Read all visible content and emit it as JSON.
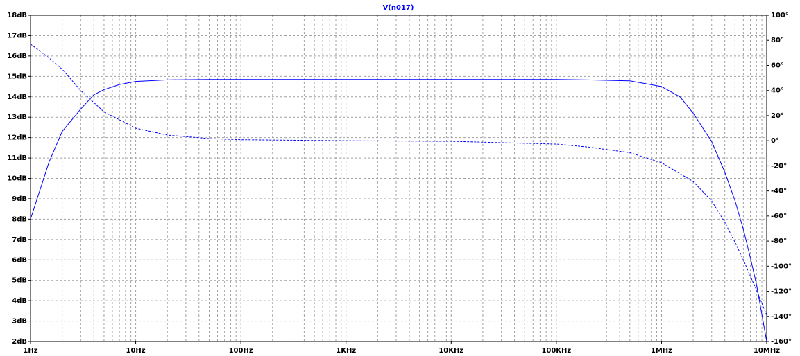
{
  "chart_data": {
    "type": "line",
    "title": "V(n017)",
    "title_color": "#0000ff",
    "xscale": "log",
    "grid": true,
    "xlim": [
      1,
      10000000
    ],
    "xticks": [
      {
        "value": 1,
        "label": "1Hz"
      },
      {
        "value": 10,
        "label": "10Hz"
      },
      {
        "value": 100,
        "label": "100Hz"
      },
      {
        "value": 1000,
        "label": "1KHz"
      },
      {
        "value": 10000,
        "label": "10KHz"
      },
      {
        "value": 100000,
        "label": "100KHz"
      },
      {
        "value": 1000000,
        "label": "1MHz"
      },
      {
        "value": 10000000,
        "label": "10MHz"
      }
    ],
    "xminor": [
      2,
      3,
      4,
      5,
      6,
      7,
      8,
      9,
      20,
      30,
      40,
      50,
      60,
      70,
      80,
      90,
      200,
      300,
      400,
      500,
      600,
      700,
      800,
      900,
      2000,
      3000,
      4000,
      5000,
      6000,
      7000,
      8000,
      9000,
      20000,
      30000,
      40000,
      50000,
      60000,
      70000,
      80000,
      90000,
      200000,
      300000,
      400000,
      500000,
      600000,
      700000,
      800000,
      900000,
      2000000,
      3000000,
      4000000,
      5000000,
      6000000,
      7000000,
      8000000,
      9000000
    ],
    "ylim": [
      2,
      18
    ],
    "yticks": [
      {
        "value": 2,
        "label": "2dB"
      },
      {
        "value": 3,
        "label": "3dB"
      },
      {
        "value": 4,
        "label": "4dB"
      },
      {
        "value": 5,
        "label": "5dB"
      },
      {
        "value": 6,
        "label": "6dB"
      },
      {
        "value": 7,
        "label": "7dB"
      },
      {
        "value": 8,
        "label": "8dB"
      },
      {
        "value": 9,
        "label": "9dB"
      },
      {
        "value": 10,
        "label": "10dB"
      },
      {
        "value": 11,
        "label": "11dB"
      },
      {
        "value": 12,
        "label": "12dB"
      },
      {
        "value": 13,
        "label": "13dB"
      },
      {
        "value": 14,
        "label": "14dB"
      },
      {
        "value": 15,
        "label": "15dB"
      },
      {
        "value": 16,
        "label": "16dB"
      },
      {
        "value": 17,
        "label": "17dB"
      },
      {
        "value": 18,
        "label": "18dB"
      }
    ],
    "y2lim": [
      -160,
      100
    ],
    "y2ticks": [
      {
        "value": -160,
        "label": "-160°"
      },
      {
        "value": -140,
        "label": "-140°"
      },
      {
        "value": -120,
        "label": "-120°"
      },
      {
        "value": -100,
        "label": "-100°"
      },
      {
        "value": -80,
        "label": "-80°"
      },
      {
        "value": -60,
        "label": "-60°"
      },
      {
        "value": -40,
        "label": "-40°"
      },
      {
        "value": -20,
        "label": "-20°"
      },
      {
        "value": 0,
        "label": "0°"
      },
      {
        "value": 20,
        "label": "20°"
      },
      {
        "value": 40,
        "label": "40°"
      },
      {
        "value": 60,
        "label": "60°"
      },
      {
        "value": 80,
        "label": "80°"
      },
      {
        "value": 100,
        "label": "100°"
      }
    ],
    "series": [
      {
        "color": "#0000ff",
        "axis": "y",
        "dashed": false,
        "x": [
          1,
          1.5,
          2,
          3,
          4,
          5,
          7,
          10,
          20,
          50,
          100,
          1000,
          10000,
          100000,
          200000,
          500000,
          1000000,
          1500000,
          2000000,
          3000000,
          4000000,
          5000000,
          6000000,
          7000000,
          8000000,
          10000000
        ],
        "values": [
          8,
          10.8,
          12.3,
          13.4,
          14.1,
          14.35,
          14.6,
          14.75,
          14.83,
          14.85,
          14.85,
          14.85,
          14.85,
          14.85,
          14.83,
          14.78,
          14.5,
          14.0,
          13.2,
          11.8,
          10.3,
          8.9,
          7.5,
          6.1,
          4.8,
          2
        ]
      },
      {
        "color": "#0000ff",
        "axis": "y2",
        "dashed": true,
        "x": [
          1,
          1.5,
          2,
          3,
          5,
          10,
          20,
          50,
          100,
          1000,
          10000,
          100000,
          200000,
          500000,
          1000000,
          2000000,
          3000000,
          4000000,
          5000000,
          6000000,
          7000000,
          8000000,
          10000000
        ],
        "values": [
          77,
          66,
          57,
          40,
          23,
          10,
          4.5,
          1.7,
          0.8,
          0,
          -0.5,
          -2.7,
          -5,
          -9.5,
          -17.5,
          -32.5,
          -48,
          -65,
          -81,
          -95,
          -108,
          -119,
          -139
        ]
      }
    ]
  }
}
